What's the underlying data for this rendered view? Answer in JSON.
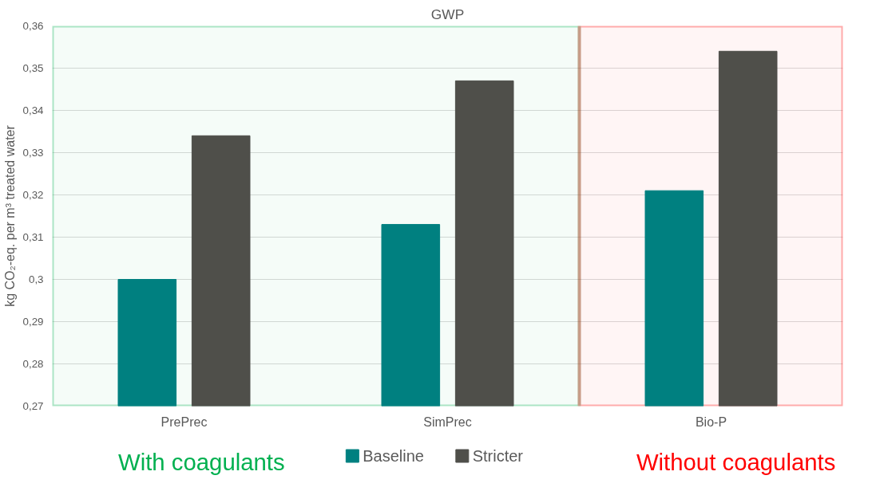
{
  "chart_data": {
    "type": "bar",
    "title": "GWP",
    "ylabel": "kg CO₂-eq. per m³ treated water",
    "categories": [
      "PrePrec",
      "SimPrec",
      "Bio-P"
    ],
    "series": [
      {
        "name": "Baseline",
        "color": "#008080",
        "values": [
          0.3,
          0.313,
          0.321
        ]
      },
      {
        "name": "Stricter",
        "color": "#4f4f4a",
        "values": [
          0.334,
          0.347,
          0.354
        ]
      }
    ],
    "ylim": [
      0.27,
      0.36
    ],
    "yticks": [
      {
        "value": 0.27,
        "label": "0,27"
      },
      {
        "value": 0.28,
        "label": "0,28"
      },
      {
        "value": 0.29,
        "label": "0,29"
      },
      {
        "value": 0.3,
        "label": "0,3"
      },
      {
        "value": 0.31,
        "label": "0,31"
      },
      {
        "value": 0.32,
        "label": "0,32"
      },
      {
        "value": 0.33,
        "label": "0,33"
      },
      {
        "value": 0.34,
        "label": "0,34"
      },
      {
        "value": 0.35,
        "label": "0,35"
      },
      {
        "value": 0.36,
        "label": "0,36"
      }
    ],
    "bands": [
      {
        "axis": "x",
        "from": "PrePrec",
        "to": "SimPrec",
        "label": "With coagulants",
        "color": "#00b050"
      },
      {
        "axis": "x",
        "from": "Bio-P",
        "to": "Bio-P",
        "label": "Without coagulants",
        "color": "#ff0000"
      }
    ],
    "grid": "y",
    "legend": "bottom"
  }
}
